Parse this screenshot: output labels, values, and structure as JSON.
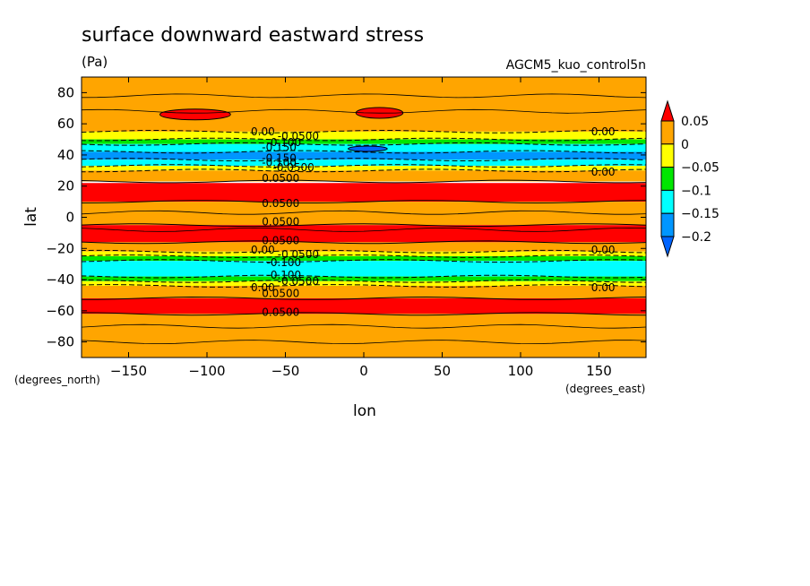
{
  "chart_data": {
    "type": "heatmap",
    "title": "surface downward eastward stress",
    "units": "(Pa)",
    "subtitle": "AGCM5_kuo_control5n",
    "xlabel": "lon",
    "ylabel": "lat",
    "x_unit_label": "(degrees_east)",
    "y_unit_label": "(degrees_north)",
    "xlim": [
      -180,
      180
    ],
    "ylim": [
      -90,
      90
    ],
    "x_ticks": [
      -150,
      -100,
      -50,
      0,
      50,
      100,
      150
    ],
    "y_ticks": [
      80,
      60,
      40,
      20,
      0,
      -20,
      -40,
      -60,
      -80
    ],
    "x_tick_labels": [
      "−150",
      "−100",
      "−50",
      "0",
      "50",
      "100",
      "150"
    ],
    "y_tick_labels": [
      "80",
      "60",
      "40",
      "20",
      "0",
      "−20",
      "−40",
      "−60",
      "−80"
    ],
    "colorbar": {
      "levels": [
        0.05,
        0,
        -0.05,
        -0.1,
        -0.15,
        -0.2
      ],
      "labels": [
        "0.05",
        "0",
        "−0.05",
        "−0.1",
        "−0.15",
        "−0.2"
      ],
      "colors": [
        "#ff0000",
        "#ffa500",
        "#ffff00",
        "#00e600",
        "#00ffff",
        "#0096ff",
        "#0064ff"
      ]
    },
    "zonal_mean_bands": [
      {
        "lat_range": [
          55,
          90
        ],
        "stress_class": "0 to 0.05"
      },
      {
        "lat_range": [
          50,
          55
        ],
        "stress_class": "-0.05 to 0"
      },
      {
        "lat_range": [
          47,
          50
        ],
        "stress_class": "-0.1 to -0.05"
      },
      {
        "lat_range": [
          42,
          47
        ],
        "stress_class": "-0.15 to -0.1"
      },
      {
        "lat_range": [
          37,
          42
        ],
        "stress_class": "-0.2 to -0.15"
      },
      {
        "lat_range": [
          33,
          37
        ],
        "stress_class": "-0.15 to -0.1"
      },
      {
        "lat_range": [
          30,
          33
        ],
        "stress_class": "-0.05 to 0"
      },
      {
        "lat_range": [
          23,
          30
        ],
        "stress_class": "0 to 0.05"
      },
      {
        "lat_range": [
          10,
          22
        ],
        "stress_class": "> 0.05"
      },
      {
        "lat_range": [
          -5,
          10
        ],
        "stress_class": "0 to 0.05"
      },
      {
        "lat_range": [
          -16,
          -5
        ],
        "stress_class": "> 0.05"
      },
      {
        "lat_range": [
          -22,
          -16
        ],
        "stress_class": "0 to 0.05"
      },
      {
        "lat_range": [
          -25,
          -22
        ],
        "stress_class": "-0.05 to 0"
      },
      {
        "lat_range": [
          -28,
          -25
        ],
        "stress_class": "-0.1 to -0.05"
      },
      {
        "lat_range": [
          -38,
          -28
        ],
        "stress_class": "-0.15 to -0.1"
      },
      {
        "lat_range": [
          -41,
          -38
        ],
        "stress_class": "-0.1 to -0.05"
      },
      {
        "lat_range": [
          -44,
          -41
        ],
        "stress_class": "-0.05 to 0"
      },
      {
        "lat_range": [
          -52,
          -44
        ],
        "stress_class": "0 to 0.05"
      },
      {
        "lat_range": [
          -62,
          -52
        ],
        "stress_class": "> 0.05"
      },
      {
        "lat_range": [
          -90,
          -62
        ],
        "stress_class": "0 to 0.05"
      }
    ],
    "contour_labels": [
      {
        "text": "0.00",
        "lon": -72,
        "lat": 55
      },
      {
        "text": "-0.0500",
        "lon": -55,
        "lat": 52
      },
      {
        "text": "-0.100",
        "lon": -62,
        "lat": 48
      },
      {
        "text": "-0.150",
        "lon": -65,
        "lat": 45
      },
      {
        "text": "-0.150",
        "lon": -65,
        "lat": 38
      },
      {
        "text": "-0.100",
        "lon": -65,
        "lat": 35
      },
      {
        "text": "-0.0500",
        "lon": -58,
        "lat": 32
      },
      {
        "text": "0.0500",
        "lon": -65,
        "lat": 25
      },
      {
        "text": "0.0500",
        "lon": -65,
        "lat": 9
      },
      {
        "text": "0.0500",
        "lon": -65,
        "lat": -3
      },
      {
        "text": "0.0500",
        "lon": -65,
        "lat": -15
      },
      {
        "text": "0.00",
        "lon": -72,
        "lat": -21
      },
      {
        "text": "-0.0500",
        "lon": -55,
        "lat": -24
      },
      {
        "text": "-0.100",
        "lon": -62,
        "lat": -29
      },
      {
        "text": "-0.100",
        "lon": -62,
        "lat": -37
      },
      {
        "text": "-0.0500",
        "lon": -55,
        "lat": -41
      },
      {
        "text": "0.00",
        "lon": -72,
        "lat": -45
      },
      {
        "text": "0.0500",
        "lon": -65,
        "lat": -49
      },
      {
        "text": "0.0500",
        "lon": -65,
        "lat": -61
      },
      {
        "text": "0.00",
        "lon": 145,
        "lat": 55
      },
      {
        "text": "0.00",
        "lon": 145,
        "lat": 29
      },
      {
        "text": "0.00",
        "lon": 145,
        "lat": -21
      },
      {
        "text": "0.00",
        "lon": 145,
        "lat": -45
      }
    ],
    "features": [
      {
        "type": "max_patch",
        "class": "> 0.05",
        "lon_range": [
          -130,
          -85
        ],
        "lat_center": 66
      },
      {
        "type": "max_patch",
        "class": "> 0.05",
        "lon_range": [
          -5,
          25
        ],
        "lat_center": 67
      },
      {
        "type": "min_patch",
        "class": "< -0.2",
        "lon_range": [
          -10,
          15
        ],
        "lat_center": 44
      }
    ]
  }
}
